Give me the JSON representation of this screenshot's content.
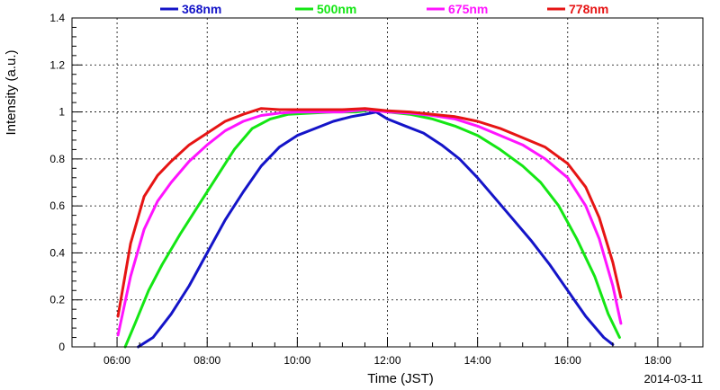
{
  "chart_data": {
    "type": "line",
    "xlabel": "Time (JST)",
    "ylabel": "Intensity (a.u.)",
    "date": "2014-03-11",
    "xlim": [
      5.0,
      19.0
    ],
    "ylim": [
      0,
      1.4
    ],
    "grid": true,
    "legend_position": "top",
    "x_ticks": [
      {
        "value": 6,
        "label": "06:00"
      },
      {
        "value": 8,
        "label": "08:00"
      },
      {
        "value": 10,
        "label": "10:00"
      },
      {
        "value": 12,
        "label": "12:00"
      },
      {
        "value": 14,
        "label": "14:00"
      },
      {
        "value": 16,
        "label": "16:00"
      },
      {
        "value": 18,
        "label": "18:00"
      }
    ],
    "y_ticks": [
      {
        "value": 0,
        "label": "0"
      },
      {
        "value": 0.2,
        "label": "0.2"
      },
      {
        "value": 0.4,
        "label": "0.4"
      },
      {
        "value": 0.6,
        "label": "0.6"
      },
      {
        "value": 0.8,
        "label": "0.8"
      },
      {
        "value": 1.0,
        "label": "1"
      },
      {
        "value": 1.2,
        "label": "1.2"
      },
      {
        "value": 1.4,
        "label": "1.4"
      }
    ],
    "series": [
      {
        "name": "368nm",
        "color": "#1414c8",
        "points": [
          [
            6.47,
            0.0
          ],
          [
            6.8,
            0.04
          ],
          [
            7.2,
            0.14
          ],
          [
            7.6,
            0.26
          ],
          [
            8.0,
            0.4
          ],
          [
            8.4,
            0.54
          ],
          [
            8.8,
            0.66
          ],
          [
            9.2,
            0.77
          ],
          [
            9.6,
            0.85
          ],
          [
            10.0,
            0.9
          ],
          [
            10.4,
            0.93
          ],
          [
            10.8,
            0.96
          ],
          [
            11.2,
            0.98
          ],
          [
            11.5,
            0.99
          ],
          [
            11.75,
            1.0
          ],
          [
            12.0,
            0.97
          ],
          [
            12.4,
            0.94
          ],
          [
            12.8,
            0.91
          ],
          [
            13.2,
            0.86
          ],
          [
            13.6,
            0.8
          ],
          [
            14.0,
            0.72
          ],
          [
            14.4,
            0.63
          ],
          [
            14.8,
            0.54
          ],
          [
            15.2,
            0.45
          ],
          [
            15.6,
            0.35
          ],
          [
            16.0,
            0.24
          ],
          [
            16.4,
            0.13
          ],
          [
            16.8,
            0.04
          ],
          [
            17.0,
            0.01
          ]
        ]
      },
      {
        "name": "500nm",
        "color": "#14e614",
        "points": [
          [
            6.18,
            0.0
          ],
          [
            6.4,
            0.1
          ],
          [
            6.7,
            0.24
          ],
          [
            7.0,
            0.35
          ],
          [
            7.4,
            0.48
          ],
          [
            7.8,
            0.6
          ],
          [
            8.2,
            0.72
          ],
          [
            8.6,
            0.84
          ],
          [
            9.0,
            0.93
          ],
          [
            9.4,
            0.97
          ],
          [
            9.8,
            0.99
          ],
          [
            10.3,
            0.995
          ],
          [
            10.8,
            1.0
          ],
          [
            11.3,
            1.0
          ],
          [
            11.7,
            1.01
          ],
          [
            12.0,
            1.0
          ],
          [
            12.5,
            0.99
          ],
          [
            13.0,
            0.97
          ],
          [
            13.5,
            0.94
          ],
          [
            14.0,
            0.9
          ],
          [
            14.5,
            0.84
          ],
          [
            15.0,
            0.77
          ],
          [
            15.4,
            0.7
          ],
          [
            15.8,
            0.6
          ],
          [
            16.2,
            0.46
          ],
          [
            16.6,
            0.3
          ],
          [
            16.9,
            0.14
          ],
          [
            17.15,
            0.04
          ]
        ]
      },
      {
        "name": "675nm",
        "color": "#ff14ff",
        "points": [
          [
            6.02,
            0.05
          ],
          [
            6.3,
            0.3
          ],
          [
            6.6,
            0.5
          ],
          [
            6.9,
            0.62
          ],
          [
            7.2,
            0.7
          ],
          [
            7.6,
            0.79
          ],
          [
            8.0,
            0.86
          ],
          [
            8.4,
            0.92
          ],
          [
            8.8,
            0.96
          ],
          [
            9.2,
            0.985
          ],
          [
            9.6,
            0.995
          ],
          [
            10.0,
            1.0
          ],
          [
            10.5,
            1.0
          ],
          [
            11.0,
            1.0
          ],
          [
            11.5,
            1.01
          ],
          [
            12.0,
            1.0
          ],
          [
            12.5,
            0.995
          ],
          [
            13.0,
            0.985
          ],
          [
            13.5,
            0.97
          ],
          [
            14.0,
            0.94
          ],
          [
            14.5,
            0.9
          ],
          [
            15.0,
            0.86
          ],
          [
            15.5,
            0.8
          ],
          [
            16.0,
            0.72
          ],
          [
            16.4,
            0.6
          ],
          [
            16.7,
            0.46
          ],
          [
            17.0,
            0.26
          ],
          [
            17.18,
            0.1
          ]
        ]
      },
      {
        "name": "778nm",
        "color": "#e61414",
        "points": [
          [
            6.02,
            0.13
          ],
          [
            6.3,
            0.44
          ],
          [
            6.6,
            0.64
          ],
          [
            6.9,
            0.73
          ],
          [
            7.2,
            0.79
          ],
          [
            7.6,
            0.86
          ],
          [
            8.0,
            0.91
          ],
          [
            8.4,
            0.96
          ],
          [
            8.8,
            0.99
          ],
          [
            9.2,
            1.015
          ],
          [
            9.6,
            1.01
          ],
          [
            10.0,
            1.01
          ],
          [
            10.5,
            1.01
          ],
          [
            11.0,
            1.01
          ],
          [
            11.5,
            1.015
          ],
          [
            12.0,
            1.005
          ],
          [
            12.5,
            1.0
          ],
          [
            13.0,
            0.99
          ],
          [
            13.5,
            0.98
          ],
          [
            14.0,
            0.96
          ],
          [
            14.5,
            0.93
          ],
          [
            15.0,
            0.89
          ],
          [
            15.5,
            0.85
          ],
          [
            16.0,
            0.78
          ],
          [
            16.4,
            0.68
          ],
          [
            16.7,
            0.55
          ],
          [
            17.0,
            0.36
          ],
          [
            17.18,
            0.21
          ]
        ]
      }
    ]
  }
}
